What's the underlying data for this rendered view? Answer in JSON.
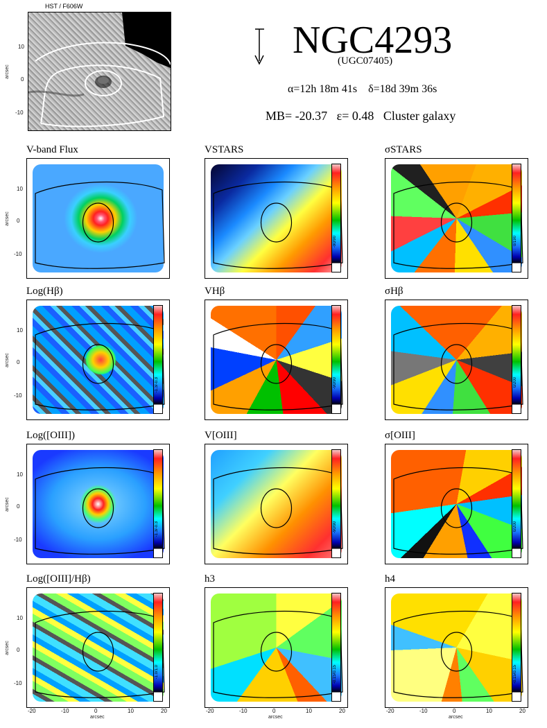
{
  "header": {
    "hst_title": "HST / F606W",
    "hst_ticks_y": [
      "10",
      "0",
      "-10"
    ],
    "hst_ylabel": "arcsec",
    "galaxy_name": "NGC4293",
    "alt_name": "(UGC07405)",
    "ra_dec": "α=12h 18m 41s    δ=18d 39m 36s",
    "properties": "MB= -20.37   ε= 0.48   Cluster galaxy"
  },
  "panels": [
    {
      "title": "V-band Flux",
      "cbar_range": ""
    },
    {
      "title": "VSTARS",
      "cbar_range": "-90/90"
    },
    {
      "title": "σSTARS",
      "cbar_range": "0/190"
    },
    {
      "title": "Log(Hβ)",
      "cbar_range": "-1.3/-0.3"
    },
    {
      "title": "VHβ",
      "cbar_range": "-90/90"
    },
    {
      "title": "σHβ",
      "cbar_range": "0/200"
    },
    {
      "title": "Log([OIII])",
      "cbar_range": "-1.3/-0.3"
    },
    {
      "title": "V[OIII]",
      "cbar_range": "-90/90"
    },
    {
      "title": "σ[OIII]",
      "cbar_range": "0/200"
    },
    {
      "title": "Log([OIII]/Hβ)",
      "cbar_range": "-1.0/1.0"
    },
    {
      "title": "h3",
      "cbar_range": "-0.15/0.15"
    },
    {
      "title": "h4",
      "cbar_range": "-0.15/0.15"
    }
  ],
  "axes": {
    "y_ticks": [
      "10",
      "0",
      "-10"
    ],
    "x_ticks": [
      "-20",
      "-10",
      "0",
      "10",
      "20"
    ],
    "ylabel": "arcsec",
    "xlabel": "arcsec"
  }
}
